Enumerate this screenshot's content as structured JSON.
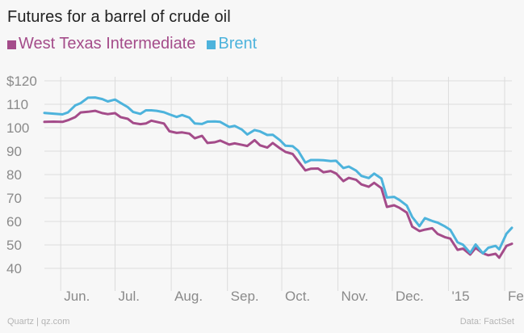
{
  "title": "Futures for a barrel of crude oil",
  "footer": {
    "source_left": "Quartz | qz.com",
    "source_right": "Data: FactSet"
  },
  "colors": {
    "wti": "#a44c8a",
    "brent": "#4db3dc",
    "grid": "#dcdcdc",
    "background": "#f7f7f7"
  },
  "chart_data": {
    "type": "line",
    "title": "Futures for a barrel of crude oil",
    "xlabel": "",
    "ylabel": "",
    "ylim": [
      40,
      120
    ],
    "y_ticks": [
      "$120",
      "110",
      "100",
      "90",
      "80",
      "70",
      "60",
      "50",
      "40"
    ],
    "x_ticks": [
      "Jun.",
      "Jul.",
      "Aug.",
      "Sep.",
      "Oct.",
      "Nov.",
      "Dec.",
      "'15",
      "Feb."
    ],
    "x_range": [
      "2014-05-23",
      "2015-02-05"
    ],
    "legend": "top-left",
    "grid": true,
    "series": [
      {
        "name": "West Texas Intermediate",
        "color": "#a44c8a",
        "points": [
          [
            "2014-05-23",
            102.5
          ],
          [
            "2014-05-28",
            102.6
          ],
          [
            "2014-06-02",
            102.5
          ],
          [
            "2014-06-05",
            103.2
          ],
          [
            "2014-06-09",
            104.5
          ],
          [
            "2014-06-12",
            106.5
          ],
          [
            "2014-06-16",
            106.8
          ],
          [
            "2014-06-20",
            107.2
          ],
          [
            "2014-06-24",
            106.2
          ],
          [
            "2014-06-27",
            105.8
          ],
          [
            "2014-07-01",
            106.2
          ],
          [
            "2014-07-04",
            104.5
          ],
          [
            "2014-07-08",
            103.8
          ],
          [
            "2014-07-11",
            102.0
          ],
          [
            "2014-07-15",
            101.5
          ],
          [
            "2014-07-18",
            101.8
          ],
          [
            "2014-07-21",
            103.0
          ],
          [
            "2014-07-24",
            102.5
          ],
          [
            "2014-07-28",
            101.8
          ],
          [
            "2014-07-31",
            98.5
          ],
          [
            "2014-08-04",
            97.8
          ],
          [
            "2014-08-07",
            98.0
          ],
          [
            "2014-08-11",
            97.5
          ],
          [
            "2014-08-14",
            95.5
          ],
          [
            "2014-08-18",
            96.5
          ],
          [
            "2014-08-21",
            93.5
          ],
          [
            "2014-08-25",
            93.8
          ],
          [
            "2014-08-28",
            94.5
          ],
          [
            "2014-09-02",
            92.8
          ],
          [
            "2014-09-05",
            93.3
          ],
          [
            "2014-09-09",
            92.7
          ],
          [
            "2014-09-12",
            92.2
          ],
          [
            "2014-09-16",
            94.7
          ],
          [
            "2014-09-19",
            92.5
          ],
          [
            "2014-09-23",
            91.5
          ],
          [
            "2014-09-26",
            93.5
          ],
          [
            "2014-09-30",
            91.2
          ],
          [
            "2014-10-03",
            89.7
          ],
          [
            "2014-10-07",
            88.8
          ],
          [
            "2014-10-10",
            85.8
          ],
          [
            "2014-10-14",
            81.8
          ],
          [
            "2014-10-17",
            82.5
          ],
          [
            "2014-10-21",
            82.6
          ],
          [
            "2014-10-24",
            81.0
          ],
          [
            "2014-10-28",
            81.5
          ],
          [
            "2014-10-31",
            80.5
          ],
          [
            "2014-11-04",
            77.2
          ],
          [
            "2014-11-07",
            78.6
          ],
          [
            "2014-11-11",
            77.8
          ],
          [
            "2014-11-14",
            75.8
          ],
          [
            "2014-11-18",
            74.8
          ],
          [
            "2014-11-21",
            76.5
          ],
          [
            "2014-11-25",
            74.2
          ],
          [
            "2014-11-28",
            66.2
          ],
          [
            "2014-12-02",
            66.9
          ],
          [
            "2014-12-05",
            65.8
          ],
          [
            "2014-12-09",
            63.8
          ],
          [
            "2014-12-12",
            57.8
          ],
          [
            "2014-12-16",
            55.9
          ],
          [
            "2014-12-19",
            56.5
          ],
          [
            "2014-12-23",
            57.1
          ],
          [
            "2014-12-26",
            54.7
          ],
          [
            "2014-12-30",
            53.3
          ],
          [
            "2015-01-02",
            52.7
          ],
          [
            "2015-01-06",
            47.9
          ],
          [
            "2015-01-09",
            48.4
          ],
          [
            "2015-01-13",
            45.9
          ],
          [
            "2015-01-16",
            48.7
          ],
          [
            "2015-01-20",
            46.4
          ],
          [
            "2015-01-23",
            45.6
          ],
          [
            "2015-01-27",
            46.2
          ],
          [
            "2015-01-29",
            44.5
          ],
          [
            "2015-02-02",
            49.6
          ],
          [
            "2015-02-05",
            50.5
          ]
        ]
      },
      {
        "name": "Brent",
        "color": "#4db3dc",
        "points": [
          [
            "2014-05-23",
            106.3
          ],
          [
            "2014-05-28",
            106.0
          ],
          [
            "2014-06-02",
            105.7
          ],
          [
            "2014-06-05",
            106.5
          ],
          [
            "2014-06-09",
            109.5
          ],
          [
            "2014-06-12",
            110.5
          ],
          [
            "2014-06-16",
            112.8
          ],
          [
            "2014-06-20",
            112.9
          ],
          [
            "2014-06-24",
            112.2
          ],
          [
            "2014-06-27",
            111.2
          ],
          [
            "2014-07-01",
            112.0
          ],
          [
            "2014-07-04",
            110.6
          ],
          [
            "2014-07-08",
            108.8
          ],
          [
            "2014-07-11",
            106.7
          ],
          [
            "2014-07-15",
            105.9
          ],
          [
            "2014-07-18",
            107.4
          ],
          [
            "2014-07-21",
            107.4
          ],
          [
            "2014-07-24",
            107.2
          ],
          [
            "2014-07-28",
            106.6
          ],
          [
            "2014-07-31",
            105.7
          ],
          [
            "2014-08-04",
            104.6
          ],
          [
            "2014-08-07",
            105.4
          ],
          [
            "2014-08-11",
            104.3
          ],
          [
            "2014-08-14",
            101.8
          ],
          [
            "2014-08-18",
            101.6
          ],
          [
            "2014-08-21",
            102.6
          ],
          [
            "2014-08-25",
            102.7
          ],
          [
            "2014-08-28",
            102.5
          ],
          [
            "2014-09-02",
            100.3
          ],
          [
            "2014-09-05",
            100.8
          ],
          [
            "2014-09-09",
            99.2
          ],
          [
            "2014-09-12",
            97.1
          ],
          [
            "2014-09-16",
            99.0
          ],
          [
            "2014-09-19",
            98.4
          ],
          [
            "2014-09-23",
            96.9
          ],
          [
            "2014-09-26",
            97.0
          ],
          [
            "2014-09-30",
            94.7
          ],
          [
            "2014-10-03",
            92.3
          ],
          [
            "2014-10-07",
            92.1
          ],
          [
            "2014-10-10",
            90.2
          ],
          [
            "2014-10-14",
            85.1
          ],
          [
            "2014-10-17",
            86.2
          ],
          [
            "2014-10-21",
            86.2
          ],
          [
            "2014-10-24",
            86.1
          ],
          [
            "2014-10-28",
            85.8
          ],
          [
            "2014-10-31",
            85.9
          ],
          [
            "2014-11-04",
            82.8
          ],
          [
            "2014-11-07",
            83.4
          ],
          [
            "2014-11-11",
            81.7
          ],
          [
            "2014-11-14",
            79.4
          ],
          [
            "2014-11-18",
            78.5
          ],
          [
            "2014-11-21",
            80.4
          ],
          [
            "2014-11-25",
            78.3
          ],
          [
            "2014-11-28",
            70.2
          ],
          [
            "2014-12-02",
            70.5
          ],
          [
            "2014-12-05",
            69.1
          ],
          [
            "2014-12-09",
            66.8
          ],
          [
            "2014-12-12",
            61.9
          ],
          [
            "2014-12-16",
            58.0
          ],
          [
            "2014-12-19",
            61.4
          ],
          [
            "2014-12-23",
            60.2
          ],
          [
            "2014-12-26",
            59.5
          ],
          [
            "2014-12-30",
            57.9
          ],
          [
            "2015-01-02",
            56.4
          ],
          [
            "2015-01-06",
            51.1
          ],
          [
            "2015-01-09",
            50.1
          ],
          [
            "2015-01-13",
            46.6
          ],
          [
            "2015-01-16",
            50.2
          ],
          [
            "2015-01-20",
            46.4
          ],
          [
            "2015-01-23",
            48.8
          ],
          [
            "2015-01-27",
            49.6
          ],
          [
            "2015-01-29",
            48.1
          ],
          [
            "2015-02-02",
            54.8
          ],
          [
            "2015-02-05",
            57.3
          ]
        ]
      }
    ]
  }
}
